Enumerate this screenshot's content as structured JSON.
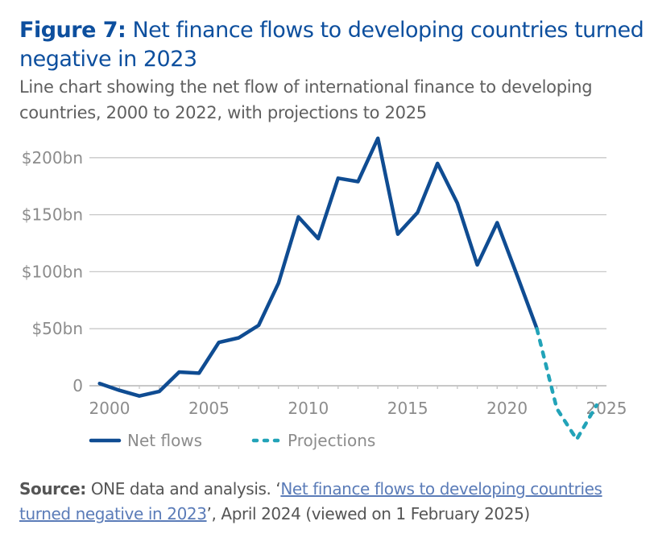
{
  "figure": {
    "label": "Figure 7:",
    "title": "Net finance flows to developing countries turned negative in 2023",
    "subtitle": "Line chart showing the net flow of international finance to developing countries, 2000 to 2022, with projections to 2025"
  },
  "colors": {
    "title": "#0d4f9e",
    "net_flows": "#0f4c92",
    "projections": "#22a3b8",
    "grid": "#c8c8c8",
    "axis_text": "#8c8c8c",
    "link": "#5b7cb8"
  },
  "chart_data": {
    "type": "line",
    "title": "Net finance flows to developing countries turned negative in 2023",
    "xlabel": "",
    "ylabel": "",
    "xlim": [
      2000,
      2025
    ],
    "ylim": [
      0,
      200
    ],
    "grid": true,
    "y_ticks": [
      0,
      50,
      100,
      150,
      200
    ],
    "y_tick_labels": [
      "0",
      "$50bn",
      "$100bn",
      "$150bn",
      "$200bn"
    ],
    "x_ticks": [
      2000,
      2005,
      2010,
      2015,
      2020,
      2025
    ],
    "x_tick_labels": [
      "2000",
      "2005",
      "2010",
      "2015",
      "2020",
      "2025"
    ],
    "legend_position": "bottom-left",
    "series": [
      {
        "name": "Net flows",
        "style": "solid",
        "x": [
          2000,
          2001,
          2002,
          2003,
          2004,
          2005,
          2006,
          2007,
          2008,
          2009,
          2010,
          2011,
          2012,
          2013,
          2014,
          2015,
          2016,
          2017,
          2018,
          2019,
          2020,
          2021,
          2022
        ],
        "values": [
          2,
          -4,
          -9,
          -5,
          12,
          11,
          38,
          42,
          53,
          90,
          148,
          129,
          182,
          179,
          217,
          133,
          152,
          195,
          160,
          106,
          143,
          97,
          50
        ]
      },
      {
        "name": "Projections",
        "style": "dashed",
        "x": [
          2022,
          2023,
          2024,
          2025
        ],
        "values": [
          50,
          -20,
          -47,
          -17
        ]
      }
    ]
  },
  "source": {
    "label": "Source:",
    "text_before": " ONE data and analysis. ‘",
    "link_text": "Net finance flows to developing countries turned negative in 2023",
    "text_after": "’, April 2024 (viewed on 1 February 2025)"
  }
}
